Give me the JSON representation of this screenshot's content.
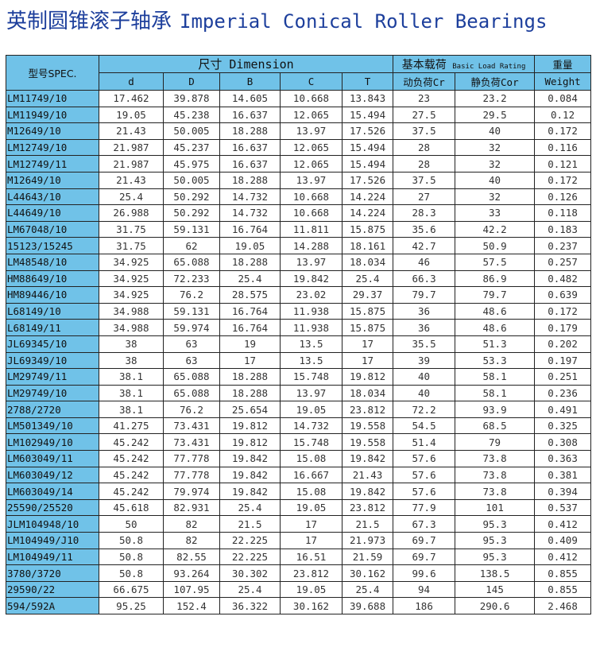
{
  "title": {
    "cn": "英制圆锥滚子轴承",
    "en": "Imperial Conical Roller Bearings"
  },
  "header": {
    "spec": "型号SPEC.",
    "dimension": "尺寸 Dimension",
    "load_rating_cn": "基本载荷",
    "load_rating_en": "Basic Load Rating",
    "weight_cn": "重量",
    "weight_en": "Weight",
    "columns": [
      "d",
      "D",
      "B",
      "C",
      "T",
      "动负荷Cr",
      "静负荷Cor"
    ]
  },
  "colors": {
    "header_bg": "#70c2e8",
    "title": "#1d3f9c"
  },
  "rows": [
    [
      "LM11749/10",
      "17.462",
      "39.878",
      "14.605",
      "10.668",
      "13.843",
      "23",
      "23.2",
      "0.084"
    ],
    [
      "LM11949/10",
      "19.05",
      "45.238",
      "16.637",
      "12.065",
      "15.494",
      "27.5",
      "29.5",
      "0.12"
    ],
    [
      "M12649/10",
      "21.43",
      "50.005",
      "18.288",
      "13.97",
      "17.526",
      "37.5",
      "40",
      "0.172"
    ],
    [
      "LM12749/10",
      "21.987",
      "45.237",
      "16.637",
      "12.065",
      "15.494",
      "28",
      "32",
      "0.116"
    ],
    [
      "LM12749/11",
      "21.987",
      "45.975",
      "16.637",
      "12.065",
      "15.494",
      "28",
      "32",
      "0.121"
    ],
    [
      "M12649/10",
      "21.43",
      "50.005",
      "18.288",
      "13.97",
      "17.526",
      "37.5",
      "40",
      "0.172"
    ],
    [
      "L44643/10",
      "25.4",
      "50.292",
      "14.732",
      "10.668",
      "14.224",
      "27",
      "32",
      "0.126"
    ],
    [
      "L44649/10",
      "26.988",
      "50.292",
      "14.732",
      "10.668",
      "14.224",
      "28.3",
      "33",
      "0.118"
    ],
    [
      "LM67048/10",
      "31.75",
      "59.131",
      "16.764",
      "11.811",
      "15.875",
      "35.6",
      "42.2",
      "0.183"
    ],
    [
      "15123/15245",
      "31.75",
      "62",
      "19.05",
      "14.288",
      "18.161",
      "42.7",
      "50.9",
      "0.237"
    ],
    [
      "LM48548/10",
      "34.925",
      "65.088",
      "18.288",
      "13.97",
      "18.034",
      "46",
      "57.5",
      "0.257"
    ],
    [
      "HM88649/10",
      "34.925",
      "72.233",
      "25.4",
      "19.842",
      "25.4",
      "66.3",
      "86.9",
      "0.482"
    ],
    [
      "HM89446/10",
      "34.925",
      "76.2",
      "28.575",
      "23.02",
      "29.37",
      "79.7",
      "79.7",
      "0.639"
    ],
    [
      "L68149/10",
      "34.988",
      "59.131",
      "16.764",
      "11.938",
      "15.875",
      "36",
      "48.6",
      "0.172"
    ],
    [
      "L68149/11",
      "34.988",
      "59.974",
      "16.764",
      "11.938",
      "15.875",
      "36",
      "48.6",
      "0.179"
    ],
    [
      "JL69345/10",
      "38",
      "63",
      "19",
      "13.5",
      "17",
      "35.5",
      "51.3",
      "0.202"
    ],
    [
      "JL69349/10",
      "38",
      "63",
      "17",
      "13.5",
      "17",
      "39",
      "53.3",
      "0.197"
    ],
    [
      "LM29749/11",
      "38.1",
      "65.088",
      "18.288",
      "15.748",
      "19.812",
      "40",
      "58.1",
      "0.251"
    ],
    [
      "LM29749/10",
      "38.1",
      "65.088",
      "18.288",
      "13.97",
      "18.034",
      "40",
      "58.1",
      "0.236"
    ],
    [
      "2788/2720",
      "38.1",
      "76.2",
      "25.654",
      "19.05",
      "23.812",
      "72.2",
      "93.9",
      "0.491"
    ],
    [
      "LM501349/10",
      "41.275",
      "73.431",
      "19.812",
      "14.732",
      "19.558",
      "54.5",
      "68.5",
      "0.325"
    ],
    [
      "LM102949/10",
      "45.242",
      "73.431",
      "19.812",
      "15.748",
      "19.558",
      "51.4",
      "79",
      "0.308"
    ],
    [
      "LM603049/11",
      "45.242",
      "77.778",
      "19.842",
      "15.08",
      "19.842",
      "57.6",
      "73.8",
      "0.363"
    ],
    [
      "LM603049/12",
      "45.242",
      "77.778",
      "19.842",
      "16.667",
      "21.43",
      "57.6",
      "73.8",
      "0.381"
    ],
    [
      "LM603049/14",
      "45.242",
      "79.974",
      "19.842",
      "15.08",
      "19.842",
      "57.6",
      "73.8",
      "0.394"
    ],
    [
      "25590/25520",
      "45.618",
      "82.931",
      "25.4",
      "19.05",
      "23.812",
      "77.9",
      "101",
      "0.537"
    ],
    [
      "JLM104948/10",
      "50",
      "82",
      "21.5",
      "17",
      "21.5",
      "67.3",
      "95.3",
      "0.412"
    ],
    [
      "LM104949/J10",
      "50.8",
      "82",
      "22.225",
      "17",
      "21.973",
      "69.7",
      "95.3",
      "0.409"
    ],
    [
      "LM104949/11",
      "50.8",
      "82.55",
      "22.225",
      "16.51",
      "21.59",
      "69.7",
      "95.3",
      "0.412"
    ],
    [
      "3780/3720",
      "50.8",
      "93.264",
      "30.302",
      "23.812",
      "30.162",
      "99.6",
      "138.5",
      "0.855"
    ],
    [
      "29590/22",
      "66.675",
      "107.95",
      "25.4",
      "19.05",
      "25.4",
      "94",
      "145",
      "0.855"
    ],
    [
      "594/592A",
      "95.25",
      "152.4",
      "36.322",
      "30.162",
      "39.688",
      "186",
      "290.6",
      "2.468"
    ]
  ]
}
